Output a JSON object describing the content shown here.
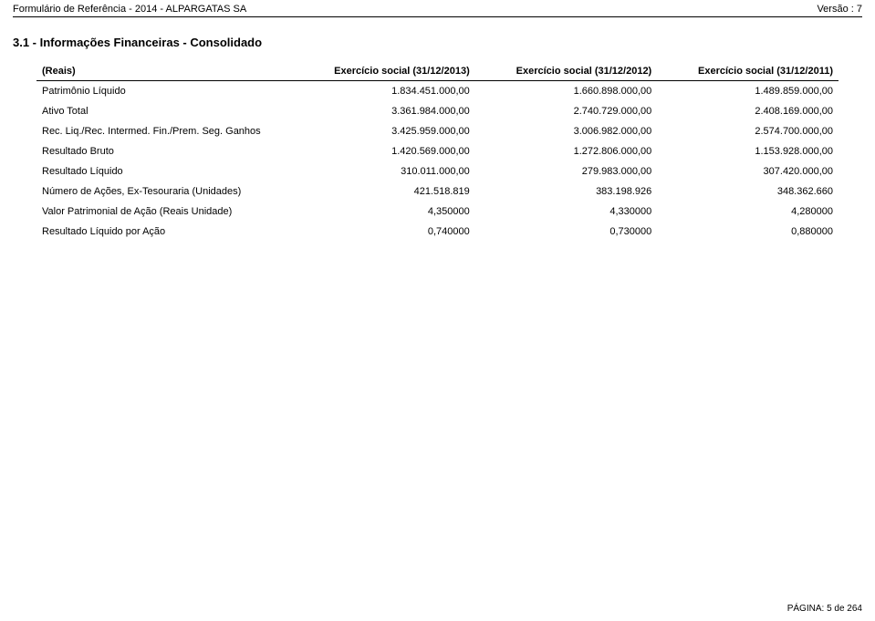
{
  "header": {
    "left": "Formulário de Referência - 2014 - ALPARGATAS SA",
    "right": "Versão : 7"
  },
  "section_title": "3.1 - Informações Financeiras - Consolidado",
  "table": {
    "columns": {
      "label": "(Reais)",
      "c1": "Exercício social (31/12/2013)",
      "c2": "Exercício social (31/12/2012)",
      "c3": "Exercício social (31/12/2011)"
    },
    "rows": [
      {
        "label": "Patrimônio Líquido",
        "c1": "1.834.451.000,00",
        "c2": "1.660.898.000,00",
        "c3": "1.489.859.000,00"
      },
      {
        "label": "Ativo Total",
        "c1": "3.361.984.000,00",
        "c2": "2.740.729.000,00",
        "c3": "2.408.169.000,00"
      },
      {
        "label": "Rec. Liq./Rec. Intermed. Fin./Prem. Seg. Ganhos",
        "c1": "3.425.959.000,00",
        "c2": "3.006.982.000,00",
        "c3": "2.574.700.000,00"
      },
      {
        "label": "Resultado Bruto",
        "c1": "1.420.569.000,00",
        "c2": "1.272.806.000,00",
        "c3": "1.153.928.000,00"
      },
      {
        "label": "Resultado Líquido",
        "c1": "310.011.000,00",
        "c2": "279.983.000,00",
        "c3": "307.420.000,00"
      },
      {
        "label": "Número de Ações, Ex-Tesouraria (Unidades)",
        "c1": "421.518.819",
        "c2": "383.198.926",
        "c3": "348.362.660"
      },
      {
        "label": "Valor Patrimonial de Ação (Reais Unidade)",
        "c1": "4,350000",
        "c2": "4,330000",
        "c3": "4,280000"
      },
      {
        "label": "Resultado Líquido por Ação",
        "c1": "0,740000",
        "c2": "0,730000",
        "c3": "0,880000"
      }
    ]
  },
  "footer": "PÁGINA: 5 de 264"
}
